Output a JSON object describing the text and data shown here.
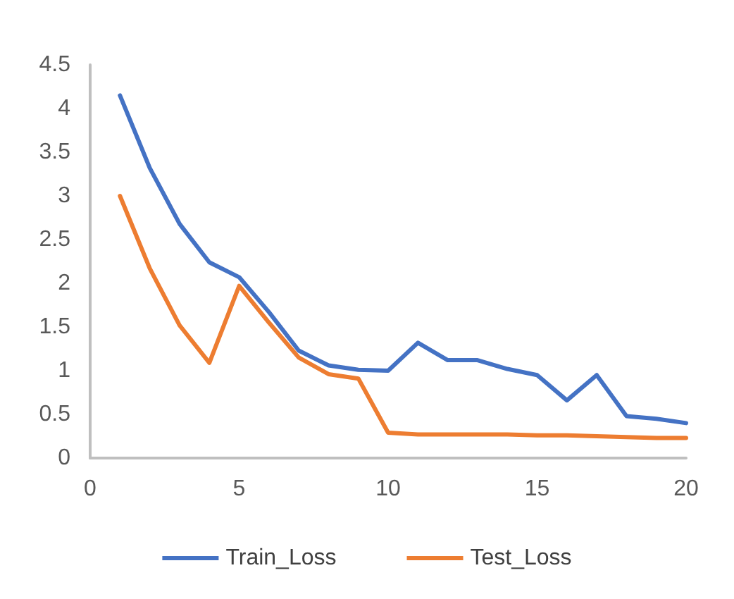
{
  "chart_data": {
    "type": "line",
    "x": [
      1,
      2,
      3,
      4,
      5,
      6,
      7,
      8,
      9,
      10,
      11,
      12,
      13,
      14,
      15,
      16,
      17,
      18,
      19,
      20
    ],
    "series": [
      {
        "name": "Train_Loss",
        "color": "#4472c4",
        "values": [
          4.15,
          3.32,
          2.68,
          2.24,
          2.07,
          1.67,
          1.23,
          1.06,
          1.01,
          1.0,
          1.32,
          1.12,
          1.12,
          1.02,
          0.95,
          0.66,
          0.95,
          0.48,
          0.45,
          0.4
        ]
      },
      {
        "name": "Test_Loss",
        "color": "#ed7d31",
        "values": [
          3.0,
          2.17,
          1.52,
          1.09,
          1.97,
          1.55,
          1.15,
          0.96,
          0.91,
          0.29,
          0.27,
          0.27,
          0.27,
          0.27,
          0.26,
          0.26,
          0.25,
          0.24,
          0.23,
          0.23
        ]
      }
    ],
    "xlim": [
      0,
      20
    ],
    "xticks": [
      0,
      5,
      10,
      15,
      20
    ],
    "ylim": [
      0,
      4.5
    ],
    "yticks": [
      0,
      0.5,
      1,
      1.5,
      2,
      2.5,
      3,
      3.5,
      4,
      4.5
    ],
    "grid": false,
    "legend": "bottom",
    "marker": "none",
    "line_style": "solid"
  }
}
